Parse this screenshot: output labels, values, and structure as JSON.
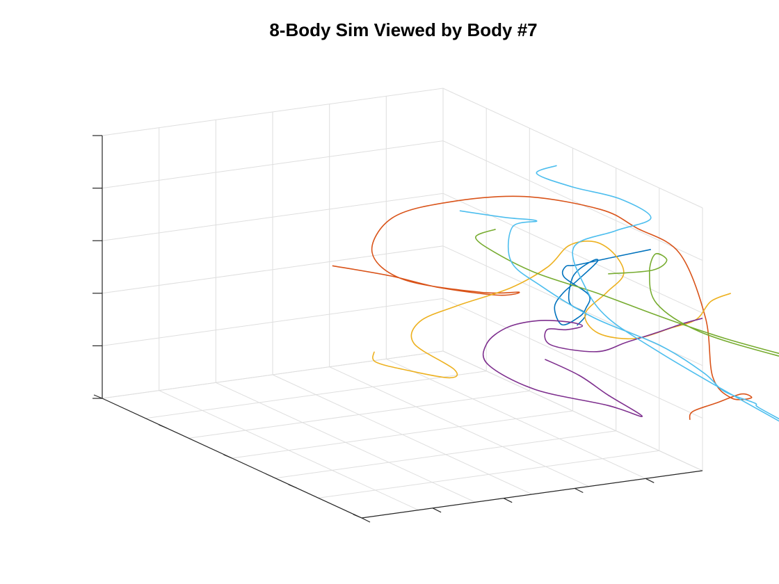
{
  "chart_data": {
    "type": "line",
    "projection": "3d",
    "title": "8-Body Sim Viewed by Body #7",
    "xlabel": "",
    "ylabel": "",
    "zlabel": "",
    "tick_labels_shown": false,
    "grid": true,
    "legend": "none",
    "series": [
      {
        "color": "#0072BD",
        "points": [
          [
            5.7,
            5.2,
            3.95
          ],
          [
            5.0,
            5.2,
            3.9
          ],
          [
            4.4,
            5.2,
            3.85
          ],
          [
            4.2,
            5.2,
            3.85
          ],
          [
            4.1,
            5.3,
            3.7
          ],
          [
            4.3,
            5.6,
            3.45
          ],
          [
            4.1,
            5.8,
            3.3
          ],
          [
            3.9,
            5.9,
            3.2
          ],
          [
            3.6,
            5.9,
            3.1
          ],
          [
            3.7,
            5.6,
            3.3
          ],
          [
            4.0,
            5.4,
            3.45
          ],
          [
            4.4,
            5.2,
            3.55
          ],
          [
            4.9,
            5.0,
            3.75
          ],
          [
            5.0,
            4.8,
            3.7
          ],
          [
            4.8,
            4.7,
            3.5
          ],
          [
            4.6,
            4.8,
            3.35
          ],
          [
            4.5,
            4.9,
            3.0
          ],
          [
            4.7,
            5.0,
            2.8
          ],
          [
            4.4,
            5.2,
            2.7
          ]
        ]
      },
      {
        "color": "#D95319",
        "points": [
          [
            2.3,
            2.3,
            3.05
          ],
          [
            3.1,
            2.6,
            2.85
          ],
          [
            3.8,
            2.8,
            2.6
          ],
          [
            4.6,
            3.1,
            2.45
          ],
          [
            4.9,
            3.2,
            2.5
          ],
          [
            4.3,
            3.1,
            2.55
          ],
          [
            3.4,
            2.5,
            2.7
          ],
          [
            3.0,
            2.3,
            3.2
          ],
          [
            3.2,
            2.5,
            3.9
          ],
          [
            3.8,
            3.0,
            4.3
          ],
          [
            4.7,
            3.6,
            4.5
          ],
          [
            5.5,
            4.3,
            4.4
          ],
          [
            5.6,
            5.0,
            4.3
          ],
          [
            5.9,
            5.6,
            4.0
          ],
          [
            5.9,
            6.2,
            3.0
          ],
          [
            5.8,
            6.5,
            2.0
          ],
          [
            5.9,
            6.8,
            1.7
          ],
          [
            6.1,
            7.0,
            1.75
          ],
          [
            6.0,
            6.9,
            1.8
          ],
          [
            5.8,
            6.6,
            1.55
          ],
          [
            5.6,
            6.3,
            1.3
          ],
          [
            5.7,
            6.1,
            1.05
          ]
        ]
      },
      {
        "color": "#EDB120",
        "points": [
          [
            2.2,
            3.4,
            1.85
          ],
          [
            2.3,
            3.3,
            1.6
          ],
          [
            2.8,
            3.4,
            1.4
          ],
          [
            3.3,
            3.7,
            1.3
          ],
          [
            3.3,
            3.8,
            1.5
          ],
          [
            2.9,
            3.4,
            1.9
          ],
          [
            3.0,
            3.4,
            2.3
          ],
          [
            3.5,
            3.6,
            2.6
          ],
          [
            4.3,
            3.8,
            2.9
          ],
          [
            4.8,
            4.0,
            3.3
          ],
          [
            5.1,
            4.1,
            3.7
          ],
          [
            5.4,
            4.3,
            3.8
          ],
          [
            5.6,
            4.5,
            3.6
          ],
          [
            5.6,
            4.7,
            3.3
          ],
          [
            5.3,
            4.7,
            3.0
          ],
          [
            5.0,
            4.6,
            2.6
          ],
          [
            5.0,
            4.9,
            2.35
          ],
          [
            5.4,
            5.2,
            2.3
          ],
          [
            5.9,
            5.4,
            2.5
          ],
          [
            6.2,
            5.6,
            2.7
          ],
          [
            6.3,
            5.8,
            3.1
          ],
          [
            6.5,
            6.0,
            3.3
          ]
        ]
      },
      {
        "color": "#7E2F8E",
        "points": [
          [
            4.9,
            3.8,
            1.45
          ],
          [
            5.2,
            4.2,
            1.25
          ],
          [
            5.4,
            4.6,
            1.0
          ],
          [
            5.7,
            5.0,
            0.7
          ],
          [
            5.4,
            4.6,
            0.8
          ],
          [
            4.5,
            4.1,
            1.05
          ],
          [
            3.9,
            3.8,
            1.5
          ],
          [
            3.8,
            3.9,
            1.95
          ],
          [
            4.0,
            4.1,
            2.3
          ],
          [
            4.3,
            4.4,
            2.5
          ],
          [
            4.6,
            4.7,
            2.55
          ],
          [
            4.8,
            4.8,
            2.48
          ],
          [
            4.6,
            4.7,
            2.4
          ],
          [
            4.4,
            4.5,
            2.35
          ],
          [
            4.4,
            4.6,
            2.1
          ],
          [
            4.9,
            5.0,
            2.05
          ],
          [
            5.2,
            5.3,
            2.3
          ],
          [
            5.5,
            5.6,
            2.55
          ],
          [
            5.8,
            5.8,
            2.75
          ],
          [
            6.0,
            6.0,
            2.9
          ]
        ]
      },
      {
        "color": "#77AC30",
        "points": [
          [
            3.5,
            4.5,
            4.4
          ],
          [
            3.3,
            4.3,
            4.2
          ],
          [
            3.5,
            4.5,
            3.95
          ],
          [
            4.0,
            4.8,
            3.6
          ],
          [
            4.7,
            5.3,
            3.3
          ],
          [
            5.4,
            5.8,
            2.95
          ],
          [
            6.1,
            6.4,
            2.65
          ],
          [
            6.9,
            7.1,
            2.4
          ],
          [
            7.3,
            7.6,
            2.3
          ],
          [
            6.6,
            6.9,
            2.45
          ],
          [
            5.8,
            6.2,
            2.75
          ],
          [
            5.5,
            5.6,
            3.1
          ],
          [
            5.6,
            5.3,
            3.55
          ],
          [
            5.7,
            5.3,
            3.9
          ],
          [
            5.6,
            5.7,
            3.95
          ],
          [
            5.5,
            5.5,
            3.7
          ],
          [
            5.1,
            5.0,
            3.5
          ]
        ]
      },
      {
        "color": "#4DBEEE",
        "points": [
          [
            3.4,
            3.8,
            4.5
          ],
          [
            3.9,
            4.2,
            4.45
          ],
          [
            4.3,
            4.4,
            4.4
          ],
          [
            4.1,
            4.1,
            4.2
          ],
          [
            4.0,
            4.2,
            3.6
          ],
          [
            4.3,
            4.5,
            3.2
          ],
          [
            4.7,
            5.2,
            2.8
          ],
          [
            5.4,
            5.8,
            2.4
          ],
          [
            5.8,
            6.3,
            2.0
          ],
          [
            6.0,
            6.5,
            1.7
          ],
          [
            6.3,
            6.8,
            1.55
          ],
          [
            6.3,
            6.9,
            1.5
          ],
          [
            6.6,
            7.2,
            1.25
          ],
          [
            6.8,
            7.4,
            1.05
          ],
          [
            6.3,
            7.0,
            1.45
          ],
          [
            5.7,
            6.5,
            1.95
          ],
          [
            5.2,
            6.0,
            2.4
          ],
          [
            4.8,
            5.4,
            2.85
          ],
          [
            4.7,
            5.0,
            3.3
          ],
          [
            4.8,
            4.6,
            3.9
          ],
          [
            5.3,
            4.9,
            4.25
          ],
          [
            5.7,
            5.2,
            4.55
          ],
          [
            5.3,
            5.0,
            4.9
          ],
          [
            4.7,
            4.7,
            5.1
          ],
          [
            4.3,
            4.4,
            5.3
          ],
          [
            4.5,
            4.6,
            5.5
          ]
        ]
      }
    ]
  }
}
